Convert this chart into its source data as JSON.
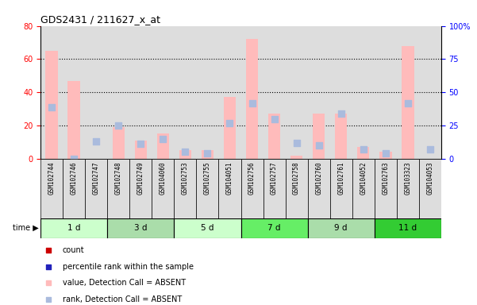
{
  "title": "GDS2431 / 211627_x_at",
  "samples": [
    "GSM102744",
    "GSM102746",
    "GSM102747",
    "GSM102748",
    "GSM102749",
    "GSM104060",
    "GSM102753",
    "GSM102755",
    "GSM104051",
    "GSM102756",
    "GSM102757",
    "GSM102758",
    "GSM102760",
    "GSM102761",
    "GSM104052",
    "GSM102763",
    "GSM103323",
    "GSM104053"
  ],
  "groups": [
    {
      "label": "1 d",
      "indices": [
        0,
        1,
        2
      ],
      "color": "#ccffcc"
    },
    {
      "label": "3 d",
      "indices": [
        3,
        4,
        5
      ],
      "color": "#aaddaa"
    },
    {
      "label": "5 d",
      "indices": [
        6,
        7,
        8
      ],
      "color": "#ccffcc"
    },
    {
      "label": "7 d",
      "indices": [
        9,
        10,
        11
      ],
      "color": "#66ee66"
    },
    {
      "label": "9 d",
      "indices": [
        12,
        13,
        14
      ],
      "color": "#aaddaa"
    },
    {
      "label": "11 d",
      "indices": [
        15,
        16,
        17
      ],
      "color": "#33cc33"
    }
  ],
  "bar_values": [
    65,
    47,
    0,
    19,
    11,
    15,
    5,
    5,
    37,
    72,
    27,
    2,
    27,
    27,
    7,
    4,
    68,
    0
  ],
  "rank_values": [
    39,
    0,
    13,
    25,
    11,
    15,
    5,
    4,
    27,
    42,
    30,
    12,
    10,
    34,
    7,
    4,
    42,
    7
  ],
  "absent_flags": [
    true,
    true,
    true,
    true,
    true,
    true,
    true,
    true,
    true,
    true,
    true,
    true,
    true,
    true,
    true,
    true,
    true,
    true
  ],
  "ylim_left": [
    0,
    80
  ],
  "ylim_right": [
    0,
    100
  ],
  "yticks_left": [
    0,
    20,
    40,
    60,
    80
  ],
  "yticks_right": [
    0,
    25,
    50,
    75,
    100
  ],
  "ytick_labels_right": [
    "0",
    "25",
    "50",
    "75",
    "100%"
  ],
  "bar_color_present": "#ff8888",
  "bar_color_absent": "#ffbbbb",
  "rank_color_present": "#2222bb",
  "rank_color_absent": "#aabbdd",
  "dot_size": 28,
  "bar_width": 0.55,
  "bg_color": "#ffffff",
  "col_bg": "#dddddd",
  "grid_color": "#000000",
  "legend_items": [
    {
      "color": "#cc0000",
      "label": "count"
    },
    {
      "color": "#2222bb",
      "label": "percentile rank within the sample"
    },
    {
      "color": "#ffbbbb",
      "label": "value, Detection Call = ABSENT"
    },
    {
      "color": "#aabbdd",
      "label": "rank, Detection Call = ABSENT"
    }
  ]
}
